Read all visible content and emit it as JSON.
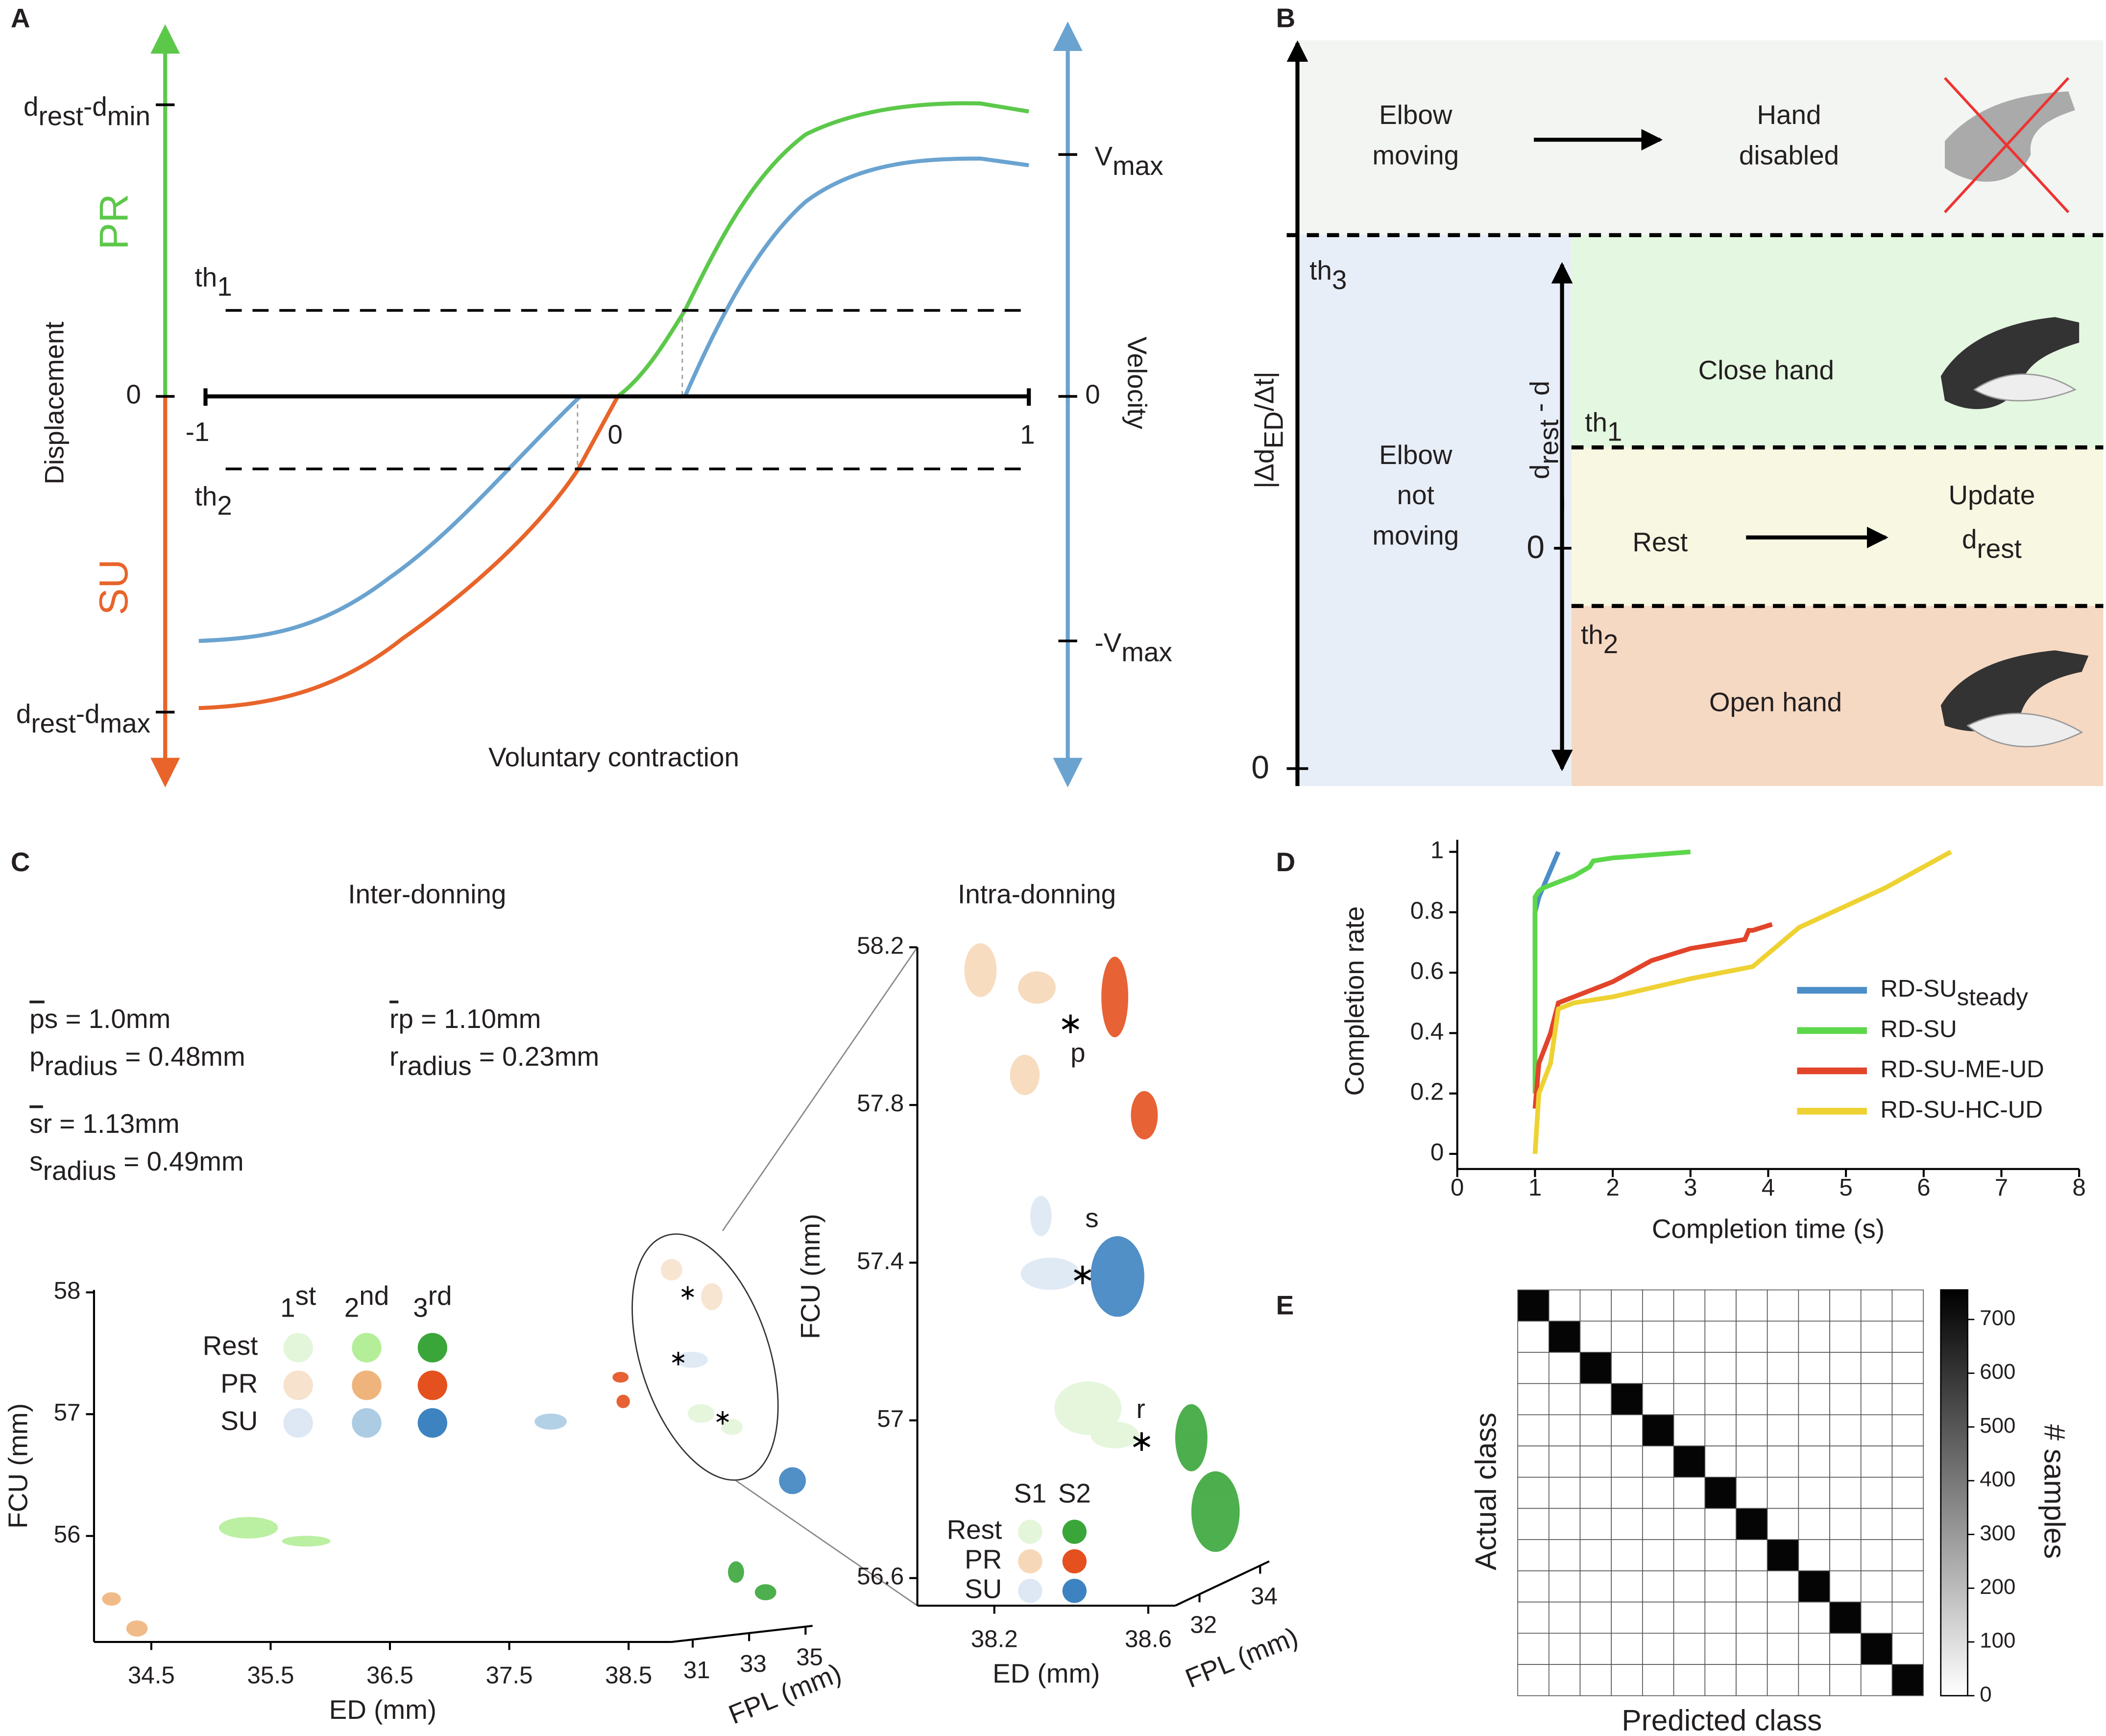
{
  "panel_a": {
    "label": "A",
    "left_ticks": [
      [
        "d",
        "rest",
        "-d",
        "min"
      ],
      0,
      [
        "d",
        "rest",
        "-d",
        "max"
      ]
    ],
    "pr": "PR",
    "su": "SU",
    "left_title": "Displacement",
    "right_ticks": [
      [
        "V",
        "max"
      ],
      0,
      [
        "-V",
        "max"
      ]
    ],
    "right_title": "Velocity",
    "x_ticks": [
      -1,
      0,
      1
    ],
    "x_title": "Voluntary contraction",
    "th1": [
      "th",
      "1"
    ],
    "th2": [
      "th",
      "2"
    ]
  },
  "panel_b": {
    "label": "B",
    "elbow_moving": [
      "Elbow",
      "moving"
    ],
    "hand_disabled": [
      "Hand",
      "disabled"
    ],
    "elbow_not_moving": [
      "Elbow",
      "not",
      "moving"
    ],
    "close": "Close hand",
    "rest": "Rest",
    "update": "Update",
    "update_sub": [
      "d",
      "rest"
    ],
    "open": "Open hand",
    "th3": [
      "th",
      "3"
    ],
    "th1": [
      "th",
      "1"
    ],
    "th2": [
      "th",
      "2"
    ],
    "y_title": [
      "|Δd",
      "ED",
      "/Δt|"
    ],
    "y_zero": 0,
    "inner_title": [
      "d",
      "rest",
      " - d"
    ],
    "inner_zero": 0
  },
  "panel_c": {
    "label": "C",
    "inter_title": "Inter-donning",
    "intra_title": "Intra-donning",
    "stats": [
      [
        "p",
        "s = 1.0mm"
      ],
      [
        "p",
        "radius",
        " = 0.48mm"
      ],
      [
        "s",
        "r = 1.13mm"
      ],
      [
        "s",
        "radius",
        " = 0.49mm"
      ],
      [
        "r",
        "p = 1.10mm"
      ],
      [
        "r",
        "radius",
        " = 0.23mm"
      ]
    ],
    "main": {
      "ylabel": "FCU (mm)",
      "xlabel": "ED (mm)",
      "zlabel": "FPL (mm)",
      "ylim": [
        55.13,
        58.02
      ],
      "yticks": [
        56,
        57,
        58
      ],
      "xlim": [
        34.02,
        38.86
      ],
      "xticks": [
        34.5,
        35.5,
        36.5,
        37.5,
        38.5
      ],
      "zlim": [
        30.25,
        35.25
      ],
      "zticks": [
        31,
        33,
        35
      ],
      "legend": {
        "columns": [
          [
            "1",
            "st"
          ],
          [
            "2",
            "nd"
          ],
          [
            "3",
            "rd"
          ]
        ],
        "rows": [
          "Rest",
          "PR",
          "SU"
        ],
        "colors": [
          [
            "#e3f6da",
            "#b4ee98",
            "#3aa63a"
          ],
          [
            "#f6e2cd",
            "#efb47c",
            "#e4511f"
          ],
          [
            "#dde8f4",
            "#abcce3",
            "#3e83c1"
          ]
        ]
      }
    },
    "inset": {
      "ylabel": "FCU (mm)",
      "xlabel": "ED (mm)",
      "zlabel": "FPL (mm)",
      "ylim": [
        56.53,
        58.2
      ],
      "yticks": [
        56.6,
        57,
        57.4,
        57.8,
        58.2
      ],
      "xlim": [
        38.0,
        38.67
      ],
      "xticks": [
        38.2,
        38.6
      ],
      "zlim": [
        31.2,
        34.3
      ],
      "zticks": [
        32,
        34
      ],
      "points": [
        "p",
        "s",
        "r"
      ],
      "legend": {
        "columns": [
          "S1",
          "S2"
        ],
        "rows": [
          "Rest",
          "PR",
          "SU"
        ],
        "colors": [
          [
            "#e3f6da",
            "#3aa63a"
          ],
          [
            "#f6d8b8",
            "#e4511f"
          ],
          [
            "#dde8f4",
            "#3e83c1"
          ]
        ]
      }
    }
  },
  "chart_data": {
    "type": "line",
    "label": "D",
    "xlabel": "Completion time (s)",
    "ylabel": "Completion rate",
    "xlim": [
      0,
      8
    ],
    "xticks": [
      0,
      1,
      2,
      3,
      4,
      5,
      6,
      7,
      8
    ],
    "ylim": [
      -0.05,
      1.04
    ],
    "yticks": [
      0,
      0.2,
      0.4,
      0.6,
      0.8,
      1
    ],
    "series": [
      {
        "name": [
          "RD-SU",
          "steady"
        ],
        "color": "#4b8ec8",
        "x": [
          1,
          1,
          1.05,
          1.3
        ],
        "values": [
          0.65,
          0.8,
          0.85,
          1
        ]
      },
      {
        "name": "RD-SU",
        "color": "#5cd64a",
        "x": [
          1,
          1,
          1.05,
          1.1,
          1.3,
          1.5,
          1.7,
          1.75,
          2,
          2.5,
          3
        ],
        "values": [
          0.2,
          0.85,
          0.87,
          0.88,
          0.9,
          0.92,
          0.95,
          0.97,
          0.98,
          0.99,
          1
        ]
      },
      {
        "name": "RD-SU-ME-UD",
        "color": "#e2442a",
        "x": [
          1,
          1.05,
          1.2,
          1.3,
          1.5,
          2,
          2.5,
          3,
          3.7,
          3.75,
          3.8,
          4.05
        ],
        "values": [
          0.15,
          0.3,
          0.4,
          0.5,
          0.52,
          0.57,
          0.64,
          0.68,
          0.71,
          0.74,
          0.74,
          0.76
        ]
      },
      {
        "name": "RD-SU-HC-UD",
        "color": "#eed233",
        "x": [
          1,
          1.05,
          1.2,
          1.3,
          1.5,
          2,
          3,
          3.8,
          4.4,
          5.5,
          6.35
        ],
        "values": [
          0,
          0.2,
          0.3,
          0.48,
          0.5,
          0.52,
          0.58,
          0.62,
          0.75,
          0.88,
          1
        ]
      }
    ]
  },
  "panel_e": {
    "label": "E",
    "xlabel": "Predicted class",
    "ylabel": "Actual class",
    "cbar_label": "# samples",
    "clim": [
      0,
      755
    ],
    "cticks": [
      0,
      100,
      200,
      300,
      400,
      500,
      600,
      700
    ],
    "matrix": [
      [
        740,
        0,
        0,
        0,
        0,
        0,
        0,
        0,
        0,
        0,
        0,
        0,
        0
      ],
      [
        0,
        740,
        0,
        0,
        0,
        0,
        0,
        0,
        0,
        0,
        0,
        0,
        0
      ],
      [
        0,
        0,
        740,
        0,
        0,
        0,
        0,
        0,
        0,
        0,
        0,
        0,
        0
      ],
      [
        0,
        0,
        0,
        740,
        0,
        0,
        0,
        0,
        0,
        0,
        0,
        0,
        0
      ],
      [
        0,
        0,
        0,
        0,
        740,
        0,
        0,
        0,
        0,
        0,
        0,
        0,
        0
      ],
      [
        0,
        0,
        0,
        0,
        0,
        740,
        0,
        0,
        0,
        0,
        0,
        0,
        0
      ],
      [
        0,
        0,
        0,
        0,
        0,
        0,
        740,
        0,
        0,
        0,
        0,
        0,
        0
      ],
      [
        0,
        0,
        0,
        0,
        0,
        0,
        0,
        740,
        0,
        0,
        0,
        0,
        0
      ],
      [
        0,
        0,
        0,
        0,
        0,
        0,
        0,
        0,
        740,
        0,
        0,
        0,
        0
      ],
      [
        0,
        0,
        0,
        0,
        0,
        0,
        0,
        0,
        0,
        740,
        0,
        0,
        0
      ],
      [
        0,
        0,
        0,
        0,
        0,
        0,
        0,
        0,
        0,
        0,
        740,
        0,
        0
      ],
      [
        0,
        0,
        0,
        0,
        0,
        0,
        0,
        0,
        0,
        0,
        0,
        740,
        0
      ],
      [
        0,
        0,
        0,
        0,
        0,
        0,
        0,
        0,
        0,
        0,
        0,
        0,
        740
      ]
    ]
  }
}
